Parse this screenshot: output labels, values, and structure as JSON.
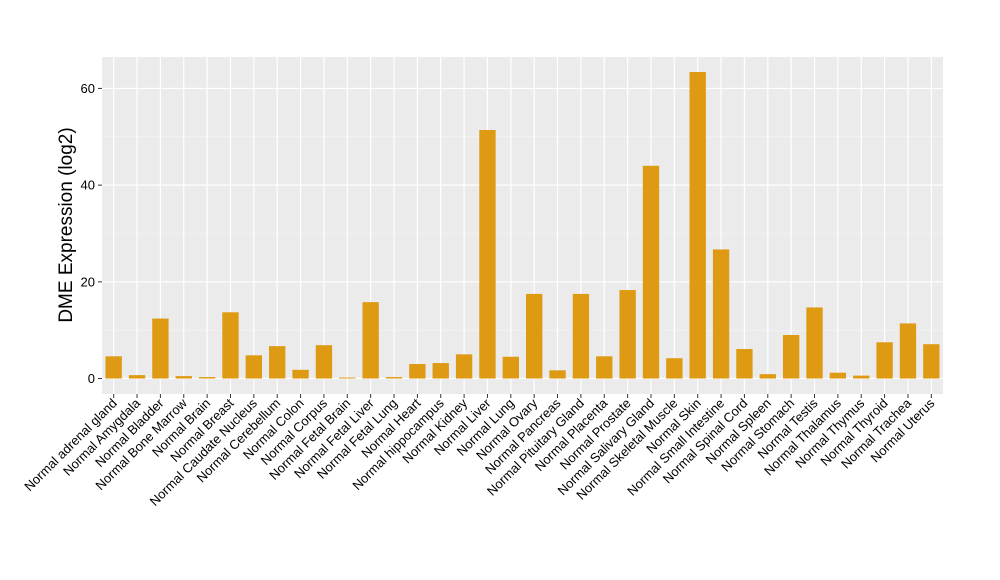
{
  "chart_data": {
    "type": "bar",
    "title": "",
    "xlabel": "",
    "ylabel": "DME Expression (log2)",
    "ylim": [
      -3.2,
      66.5
    ],
    "yticks": [
      0,
      20,
      40,
      60
    ],
    "grid": true,
    "legend": "none",
    "colors": {
      "bar": "#DE9A12",
      "panel": "#EBEBEB",
      "grid_major": "#FFFFFF",
      "grid_minor": "#F4F4F4",
      "tick": "#333333"
    },
    "categories": [
      "Normal adrenal gland",
      "Normal Amygdala",
      "Normal Bladder",
      "Normal Bone Marrow",
      "Normal Brain",
      "Normal Breast",
      "Normal Caudate Nucleus",
      "Normal Cerebellum",
      "Normal Colon",
      "Normal Corpus",
      "Normal Fetal Brain",
      "Normal Fetal Liver",
      "Normal Fetal Lung",
      "Normal Heart",
      "Normal hippocampus",
      "Normal Kidney",
      "Normal Liver",
      "Normal Lung",
      "Normal Ovary",
      "Normal Pancreas",
      "Normal Pituitary Gland",
      "Normal Placenta",
      "Normal Prostate",
      "Normal Salivary Gland",
      "Normal Skeletal Muscle",
      "Normal Skin",
      "Normal Small Intestine",
      "Normal Spinal Cord",
      "Normal Spleen",
      "Normal Stomach",
      "Normal Testis",
      "Normal Thalamus",
      "Normal Thymus",
      "Normal Thyroid",
      "Normal Trachea",
      "Normal Uterus"
    ],
    "values": [
      4.6,
      0.7,
      12.4,
      0.5,
      0.3,
      13.7,
      4.8,
      6.7,
      1.8,
      6.9,
      0.2,
      15.8,
      0.3,
      3.0,
      3.2,
      5.0,
      51.4,
      4.5,
      17.5,
      1.7,
      17.5,
      4.6,
      18.3,
      44.0,
      4.2,
      63.4,
      26.7,
      6.1,
      0.9,
      9.0,
      14.7,
      1.2,
      0.6,
      7.5,
      11.4,
      7.1
    ]
  }
}
